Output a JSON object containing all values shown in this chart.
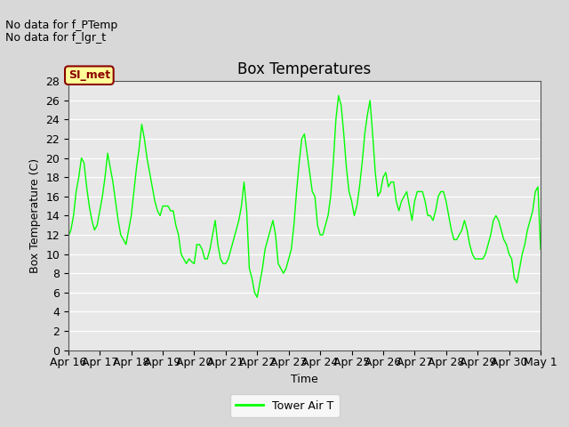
{
  "title": "Box Temperatures",
  "xlabel": "Time",
  "ylabel": "Box Temperature (C)",
  "no_data_text": [
    "No data for f_PTemp",
    "No data for f_lgr_t"
  ],
  "legend_box_label": "SI_met",
  "legend_line_label": "Tower Air T",
  "line_color": "#00FF00",
  "legend_box_bg": "#FFFF99",
  "legend_box_border": "#8B0000",
  "legend_box_text_color": "#8B0000",
  "bg_color": "#D8D8D8",
  "plot_bg_color": "#E8E8E8",
  "ylim": [
    0,
    28
  ],
  "yticks": [
    0,
    2,
    4,
    6,
    8,
    10,
    12,
    14,
    16,
    18,
    20,
    22,
    24,
    26,
    28
  ],
  "x_labels": [
    "Apr 16",
    "Apr 17",
    "Apr 18",
    "Apr 19",
    "Apr 20",
    "Apr 21",
    "Apr 22",
    "Apr 23",
    "Apr 24",
    "Apr 25",
    "Apr 26",
    "Apr 27",
    "Apr 28",
    "Apr 29",
    "Apr 30",
    "May 1"
  ],
  "x_values": [
    0,
    1,
    2,
    3,
    4,
    5,
    6,
    7,
    8,
    9,
    10,
    11,
    12,
    13,
    14,
    15
  ],
  "tower_air_t": [
    11.8,
    12.5,
    14.0,
    16.5,
    18.0,
    20.0,
    19.5,
    17.0,
    15.0,
    13.5,
    12.5,
    13.0,
    14.5,
    16.0,
    18.0,
    20.5,
    19.0,
    17.5,
    15.5,
    13.5,
    12.0,
    11.5,
    11.0,
    12.5,
    14.0,
    16.5,
    19.0,
    21.0,
    23.5,
    22.0,
    20.0,
    18.5,
    17.0,
    15.5,
    14.5,
    14.0,
    15.0,
    15.0,
    15.0,
    14.5,
    14.5,
    13.0,
    12.0,
    10.0,
    9.5,
    9.0,
    9.5,
    9.2,
    9.0,
    11.0,
    11.0,
    10.5,
    9.5,
    9.5,
    10.5,
    12.0,
    13.5,
    11.0,
    9.5,
    9.0,
    9.0,
    9.5,
    10.5,
    11.5,
    12.5,
    13.5,
    15.0,
    17.5,
    14.5,
    8.5,
    7.5,
    6.0,
    5.5,
    7.0,
    8.5,
    10.5,
    11.5,
    12.5,
    13.5,
    12.0,
    9.0,
    8.5,
    8.0,
    8.5,
    9.5,
    10.5,
    13.0,
    16.5,
    19.5,
    22.0,
    22.5,
    20.5,
    18.5,
    16.5,
    16.0,
    13.0,
    12.0,
    12.0,
    13.0,
    14.0,
    16.0,
    19.5,
    24.0,
    26.5,
    25.5,
    22.5,
    19.0,
    16.5,
    15.5,
    14.0,
    15.0,
    17.0,
    19.5,
    22.5,
    24.5,
    26.0,
    22.5,
    18.5,
    16.0,
    16.5,
    18.0,
    18.5,
    17.0,
    17.5,
    17.5,
    15.5,
    14.5,
    15.5,
    16.0,
    16.5,
    15.0,
    13.5,
    15.5,
    16.5,
    16.5,
    16.5,
    15.5,
    14.0,
    14.0,
    13.5,
    14.5,
    16.0,
    16.5,
    16.5,
    15.5,
    14.0,
    12.5,
    11.5,
    11.5,
    12.0,
    12.5,
    13.5,
    12.5,
    11.0,
    10.0,
    9.5,
    9.5,
    9.5,
    9.5,
    10.0,
    11.0,
    12.0,
    13.5,
    14.0,
    13.5,
    12.5,
    11.5,
    11.0,
    10.0,
    9.5,
    7.5,
    7.0,
    8.5,
    10.0,
    11.0,
    12.5,
    13.5,
    14.5,
    16.5,
    17.0,
    10.5
  ],
  "title_fontsize": 12,
  "label_fontsize": 9,
  "tick_fontsize": 9,
  "nodata_fontsize": 9
}
